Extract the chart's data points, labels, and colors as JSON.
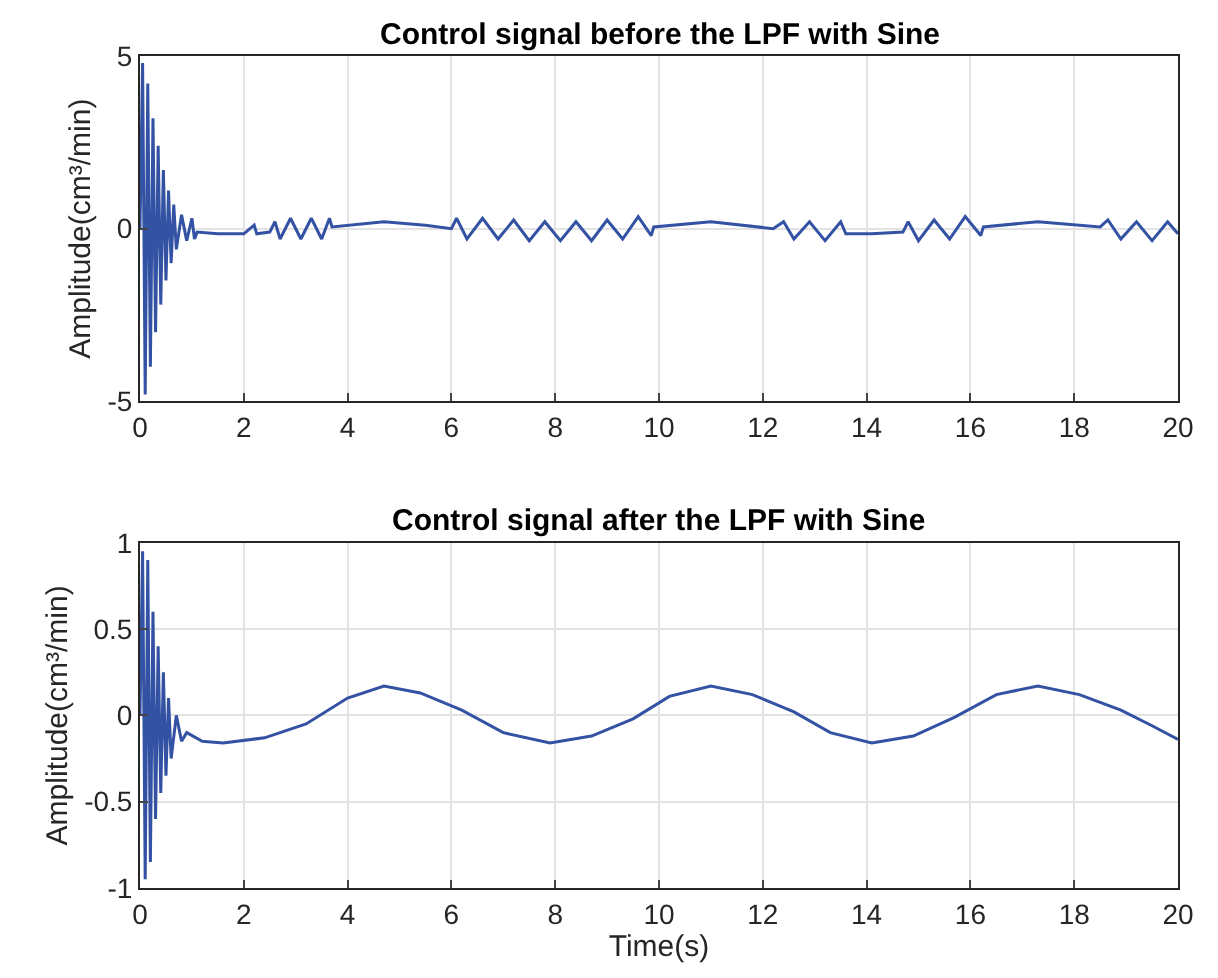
{
  "chart_data": [
    {
      "type": "line",
      "title": "Control signal before the LPF with Sine",
      "ylabel": "Amplitude(cm³/min)",
      "xlim": [
        0,
        20
      ],
      "xticks": [
        0,
        2,
        4,
        6,
        8,
        10,
        12,
        14,
        16,
        18,
        20
      ],
      "ylim": [
        -5,
        5
      ],
      "yticks": [
        -5,
        0,
        5
      ],
      "grid": true,
      "marker": "none",
      "line_style": "solid",
      "series": [
        {
          "color": "#3352a3",
          "x": [
            0,
            0.05,
            0.1,
            0.15,
            0.2,
            0.25,
            0.3,
            0.35,
            0.4,
            0.45,
            0.5,
            0.55,
            0.6,
            0.65,
            0.7,
            0.8,
            0.9,
            1.0,
            1.05,
            1.1,
            1.5,
            2.0,
            2.2,
            2.25,
            2.5,
            2.6,
            2.7,
            2.9,
            3.1,
            3.3,
            3.5,
            3.65,
            3.7,
            4.7,
            5.5,
            6.0,
            6.1,
            6.3,
            6.6,
            6.9,
            7.2,
            7.5,
            7.8,
            8.1,
            8.4,
            8.7,
            9.0,
            9.3,
            9.6,
            9.85,
            9.9,
            11.0,
            12.2,
            12.4,
            12.6,
            12.9,
            13.2,
            13.5,
            13.6,
            14.1,
            14.7,
            14.8,
            15.0,
            15.3,
            15.6,
            15.9,
            16.2,
            16.25,
            17.3,
            18.5,
            18.65,
            18.9,
            19.2,
            19.5,
            19.8,
            20
          ],
          "values": [
            0,
            4.8,
            -4.8,
            4.2,
            -4.0,
            3.2,
            -3.0,
            2.4,
            -2.2,
            1.7,
            -1.5,
            1.1,
            -1.0,
            0.7,
            -0.6,
            0.4,
            -0.35,
            0.3,
            -0.3,
            -0.1,
            -0.15,
            -0.15,
            0.1,
            -0.15,
            -0.1,
            0.2,
            -0.3,
            0.3,
            -0.3,
            0.3,
            -0.3,
            0.3,
            0.05,
            0.2,
            0.1,
            0.0,
            0.3,
            -0.3,
            0.3,
            -0.3,
            0.25,
            -0.35,
            0.2,
            -0.35,
            0.2,
            -0.35,
            0.25,
            -0.3,
            0.35,
            -0.2,
            0.05,
            0.2,
            0.0,
            0.2,
            -0.3,
            0.2,
            -0.35,
            0.2,
            -0.15,
            -0.15,
            -0.1,
            0.2,
            -0.35,
            0.25,
            -0.3,
            0.35,
            -0.2,
            0.05,
            0.2,
            0.05,
            0.25,
            -0.3,
            0.2,
            -0.35,
            0.2,
            -0.15
          ]
        }
      ]
    },
    {
      "type": "line",
      "title": "Control signal after the LPF with Sine",
      "xlabel": "Time(s)",
      "ylabel": "Amplitude(cm³/min)",
      "xlim": [
        0,
        20
      ],
      "xticks": [
        0,
        2,
        4,
        6,
        8,
        10,
        12,
        14,
        16,
        18,
        20
      ],
      "ylim": [
        -1,
        1
      ],
      "yticks": [
        -1,
        -0.5,
        0,
        0.5,
        1
      ],
      "grid": true,
      "marker": "none",
      "line_style": "solid",
      "series": [
        {
          "color": "#3352a3",
          "x": [
            0,
            0.05,
            0.1,
            0.15,
            0.2,
            0.25,
            0.3,
            0.35,
            0.4,
            0.45,
            0.5,
            0.55,
            0.6,
            0.7,
            0.8,
            0.9,
            1.2,
            1.6,
            2.4,
            3.2,
            4.0,
            4.7,
            5.4,
            6.2,
            7.0,
            7.9,
            8.7,
            9.5,
            10.2,
            11.0,
            11.8,
            12.6,
            13.3,
            14.1,
            14.9,
            15.7,
            16.5,
            17.3,
            18.1,
            18.9,
            19.5,
            20
          ],
          "values": [
            0,
            0.95,
            -0.95,
            0.9,
            -0.85,
            0.6,
            -0.6,
            0.4,
            -0.45,
            0.25,
            -0.35,
            0.1,
            -0.25,
            0.0,
            -0.15,
            -0.1,
            -0.15,
            -0.16,
            -0.13,
            -0.05,
            0.1,
            0.17,
            0.13,
            0.03,
            -0.1,
            -0.16,
            -0.12,
            -0.02,
            0.11,
            0.17,
            0.12,
            0.02,
            -0.1,
            -0.16,
            -0.12,
            -0.01,
            0.12,
            0.17,
            0.12,
            0.03,
            -0.06,
            -0.14
          ]
        }
      ]
    }
  ]
}
